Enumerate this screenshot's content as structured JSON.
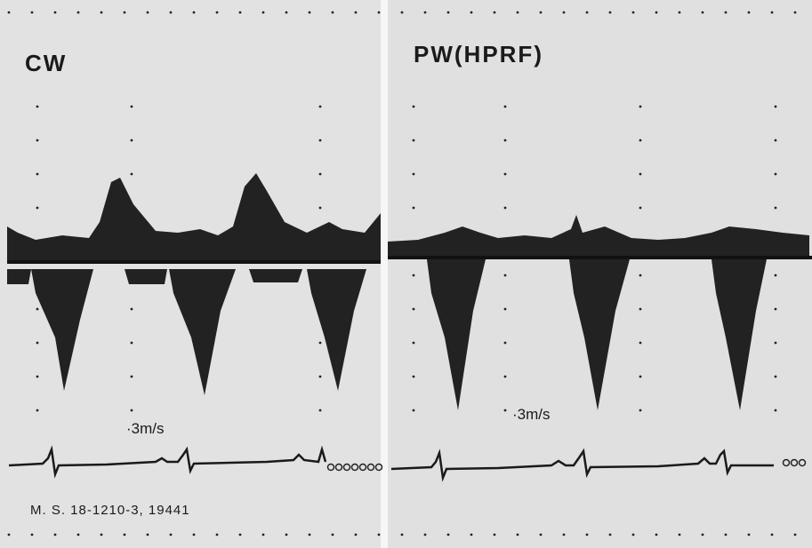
{
  "panels": [
    {
      "label": "CW",
      "scale_label": "·3m/s"
    },
    {
      "label": "PW(HPRF)",
      "scale_label": "·3m/s"
    }
  ],
  "caption": "M. S.   18-1210-3, 19441"
}
